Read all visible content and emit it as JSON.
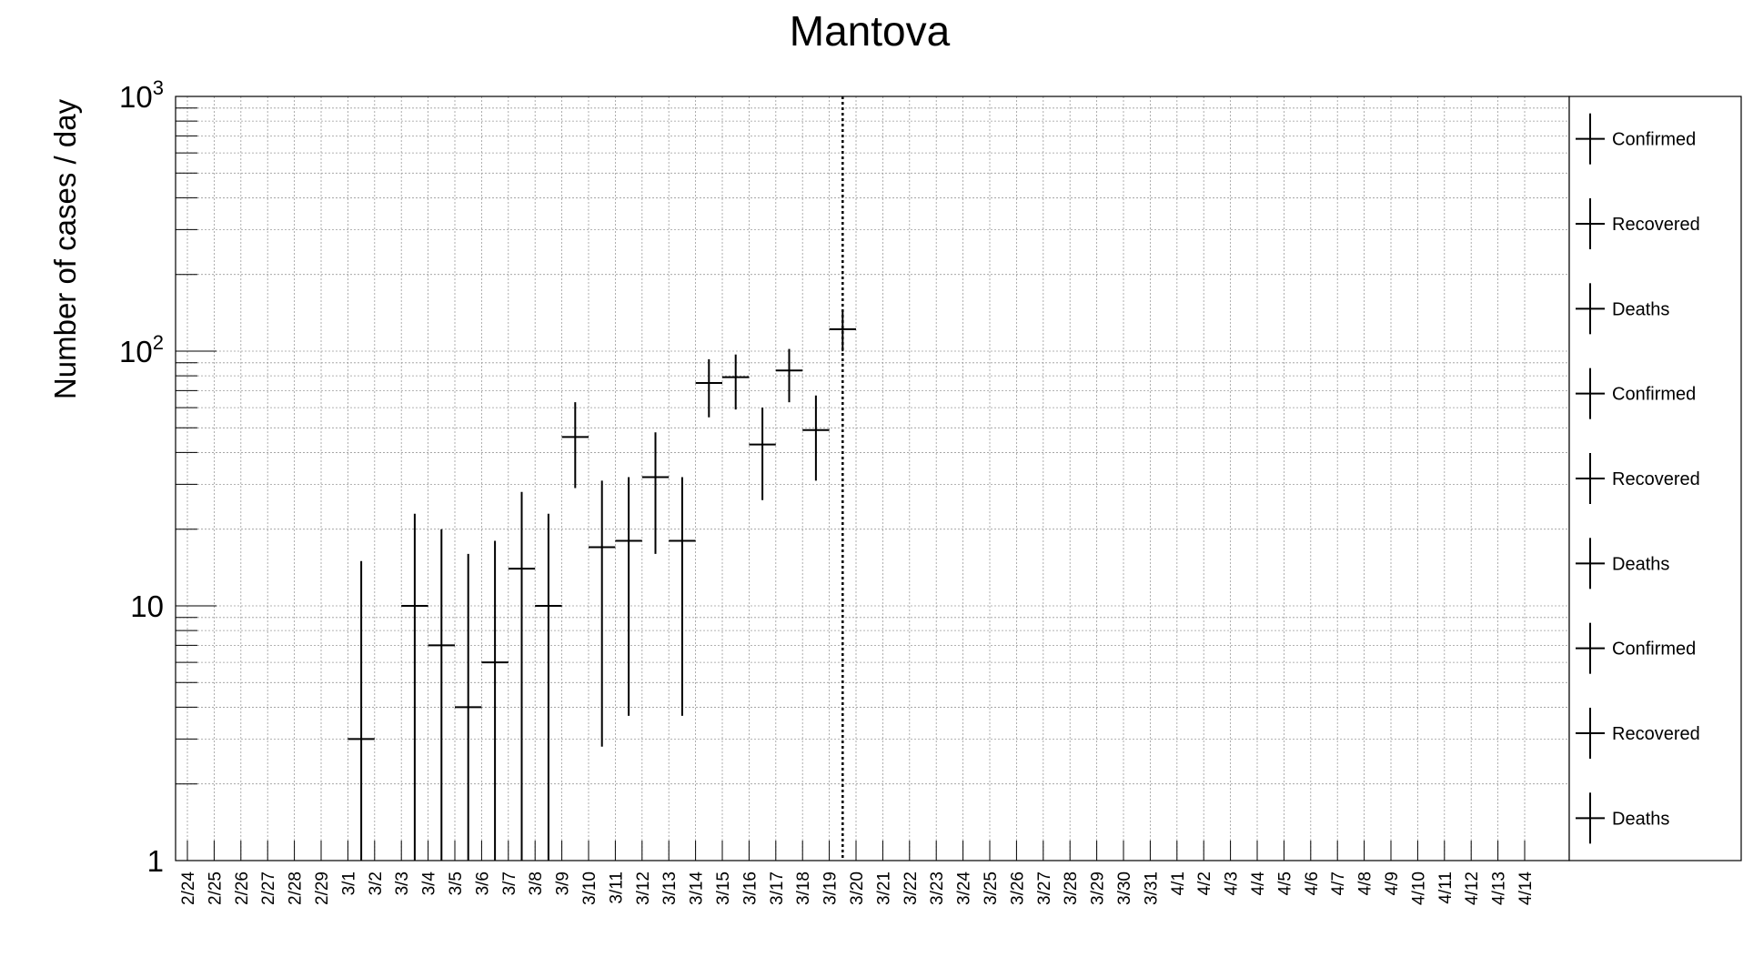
{
  "chart_data": {
    "type": "scatter",
    "title": "Mantova",
    "xlabel": "",
    "ylabel": "Number of cases / day",
    "yscale": "log",
    "ylim": [
      1,
      1000
    ],
    "y_tick_labels": [
      {
        "value": 1,
        "label": "1"
      },
      {
        "value": 10,
        "label": "10"
      },
      {
        "value": 100,
        "label": "10",
        "exponent": "2"
      },
      {
        "value": 1000,
        "label": "10",
        "exponent": "3"
      }
    ],
    "grid": true,
    "categories": [
      "2/24",
      "2/25",
      "2/26",
      "2/27",
      "2/28",
      "2/29",
      "3/1",
      "3/2",
      "3/3",
      "3/4",
      "3/5",
      "3/6",
      "3/7",
      "3/8",
      "3/9",
      "3/10",
      "3/11",
      "3/12",
      "3/13",
      "3/14",
      "3/15",
      "3/16",
      "3/17",
      "3/18",
      "3/19",
      "3/20",
      "3/21",
      "3/22",
      "3/23",
      "3/24",
      "3/25",
      "3/26",
      "3/27",
      "3/28",
      "3/29",
      "3/30",
      "3/31",
      "4/1",
      "4/2",
      "4/3",
      "4/4",
      "4/5",
      "4/6",
      "4/7",
      "4/8",
      "4/9",
      "4/10",
      "4/11",
      "4/12",
      "4/13",
      "4/14"
    ],
    "series": [
      {
        "name": "Confirmed",
        "points": [
          {
            "x": "3/1",
            "y": 3,
            "ylo": 1,
            "yhi": 15
          },
          {
            "x": "3/3",
            "y": 10,
            "ylo": 1,
            "yhi": 23
          },
          {
            "x": "3/4",
            "y": 7,
            "ylo": 1,
            "yhi": 20
          },
          {
            "x": "3/5",
            "y": 4,
            "ylo": 1,
            "yhi": 16
          },
          {
            "x": "3/6",
            "y": 6,
            "ylo": 1,
            "yhi": 18
          },
          {
            "x": "3/7",
            "y": 14,
            "ylo": 1,
            "yhi": 28
          },
          {
            "x": "3/8",
            "y": 10,
            "ylo": 1,
            "yhi": 23
          },
          {
            "x": "3/9",
            "y": 46,
            "ylo": 29,
            "yhi": 63
          },
          {
            "x": "3/10",
            "y": 17,
            "ylo": 2.8,
            "yhi": 31
          },
          {
            "x": "3/11",
            "y": 18,
            "ylo": 3.7,
            "yhi": 32
          },
          {
            "x": "3/12",
            "y": 32,
            "ylo": 16,
            "yhi": 48
          },
          {
            "x": "3/13",
            "y": 18,
            "ylo": 3.7,
            "yhi": 32
          },
          {
            "x": "3/14",
            "y": 75,
            "ylo": 55,
            "yhi": 93
          },
          {
            "x": "3/15",
            "y": 79,
            "ylo": 59,
            "yhi": 97
          },
          {
            "x": "3/16",
            "y": 43,
            "ylo": 26,
            "yhi": 60
          },
          {
            "x": "3/17",
            "y": 84,
            "ylo": 63,
            "yhi": 102
          },
          {
            "x": "3/18",
            "y": 49,
            "ylo": 31,
            "yhi": 67
          },
          {
            "x": "3/19",
            "y": 122,
            "ylo": 100,
            "yhi": 144
          }
        ]
      }
    ],
    "vertical_marker": {
      "x": "3/19",
      "style": "dotted"
    },
    "legend": {
      "position": "right",
      "entries": [
        "Confirmed",
        "Recovered",
        "Deaths",
        "Confirmed",
        "Recovered",
        "Deaths",
        "Confirmed",
        "Recovered",
        "Deaths"
      ]
    }
  }
}
